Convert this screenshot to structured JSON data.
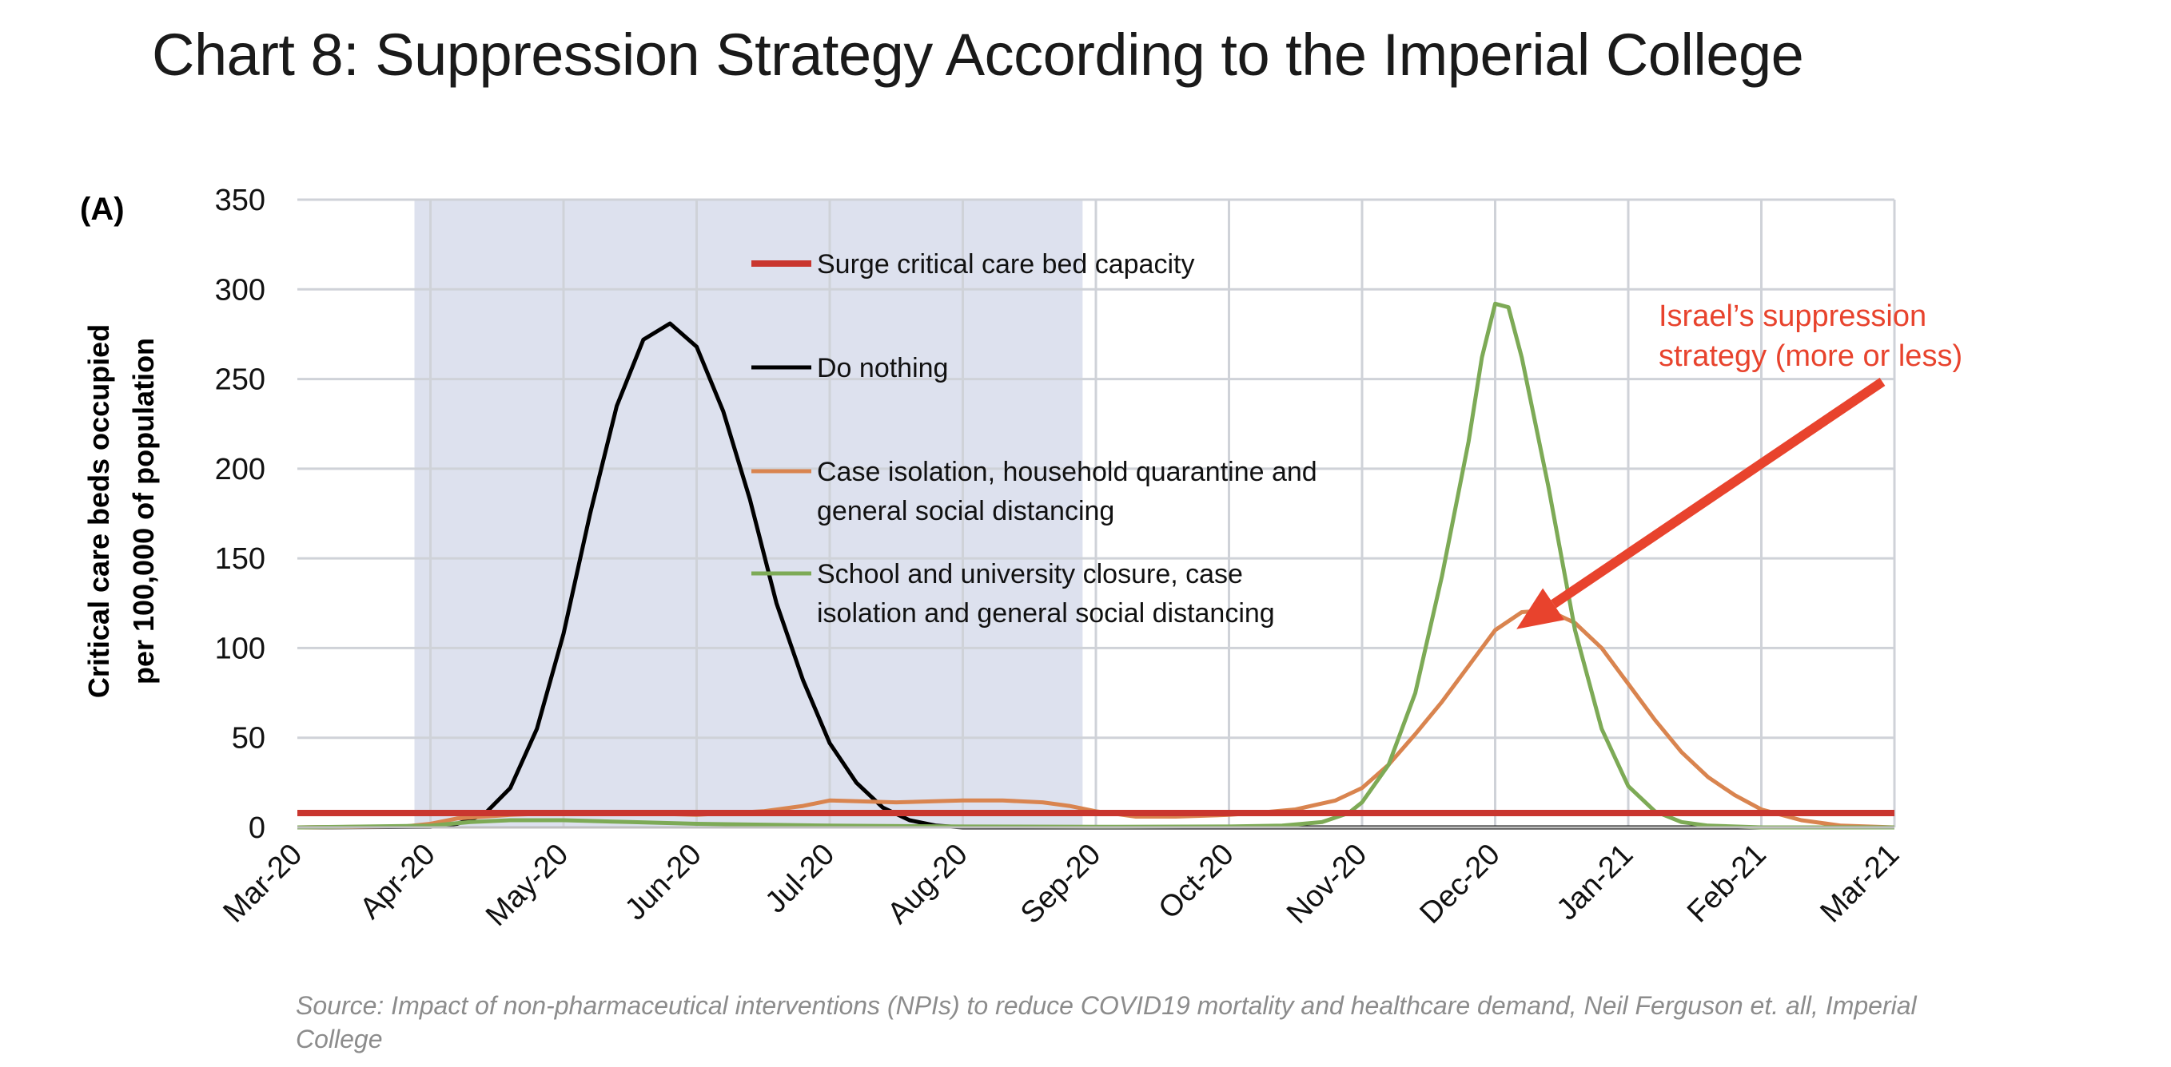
{
  "page": {
    "title": "Chart 8: Suppression Strategy According to the Imperial College",
    "source": "Source: Impact of non-pharmaceutical interventions (NPIs) to reduce COVID19 mortality and healthcare demand, Neil Ferguson et. all, Imperial College"
  },
  "chart_data": {
    "type": "line",
    "panel_label": "(A)",
    "title": "",
    "xlabel": "",
    "ylabel": [
      "Critical care beds occupied",
      "per 100,000 of population"
    ],
    "x_categories": [
      "Mar-20",
      "Apr-20",
      "May-20",
      "Jun-20",
      "Jul-20",
      "Aug-20",
      "Sep-20",
      "Oct-20",
      "Nov-20",
      "Dec-20",
      "Jan-21",
      "Feb-21",
      "Mar-21"
    ],
    "x_range": [
      0,
      12
    ],
    "y_ticks": [
      0,
      50,
      100,
      150,
      200,
      250,
      300,
      350
    ],
    "ylim": [
      0,
      350
    ],
    "grid": true,
    "shaded_period": {
      "x_start": 0.88,
      "x_end": 5.9,
      "color": "#dde1ee"
    },
    "legend_placement": "inside, center-top",
    "series": [
      {
        "name": "Surge critical care bed capacity",
        "color": "#c9362f",
        "x": [
          0,
          12
        ],
        "y": [
          8,
          8
        ]
      },
      {
        "name": "Do nothing",
        "color": "#000000",
        "x": [
          0,
          1,
          1.2,
          1.4,
          1.6,
          1.8,
          2,
          2.2,
          2.4,
          2.6,
          2.8,
          3,
          3.2,
          3.4,
          3.6,
          3.8,
          4,
          4.2,
          4.4,
          4.6,
          4.8,
          5,
          5.2,
          12
        ],
        "y": [
          0,
          0.3,
          2,
          7,
          22,
          55,
          108,
          175,
          235,
          272,
          281,
          268,
          232,
          183,
          125,
          82,
          47,
          25,
          11,
          4,
          1,
          0,
          0,
          0
        ]
      },
      {
        "name": "Case isolation, household quarantine and general social distancing",
        "color": "#d9844f",
        "x": [
          0,
          0.8,
          1,
          1.2,
          1.6,
          2,
          2.5,
          3,
          3.5,
          3.8,
          4,
          4.5,
          5,
          5.3,
          5.6,
          5.8,
          6,
          6.3,
          6.6,
          7,
          7.2,
          7.5,
          7.8,
          8,
          8.2,
          8.4,
          8.6,
          8.8,
          9,
          9.2,
          9.4,
          9.6,
          9.8,
          10,
          10.2,
          10.4,
          10.6,
          10.8,
          11,
          11.3,
          11.6,
          12
        ],
        "y": [
          0,
          0.5,
          2,
          5,
          7,
          8,
          8,
          7,
          9,
          12,
          15,
          14,
          15,
          15,
          14,
          12,
          9,
          6,
          6,
          7,
          8,
          10,
          15,
          22,
          35,
          52,
          70,
          90,
          110,
          120,
          121,
          114,
          100,
          80,
          60,
          42,
          28,
          18,
          10,
          4,
          1,
          0
        ]
      },
      {
        "name": "School and university closure, case isolation and general social distancing",
        "color": "#7daa56",
        "x": [
          0,
          1,
          1.3,
          1.6,
          2,
          2.5,
          3,
          3.5,
          4,
          5,
          6,
          7,
          7.4,
          7.7,
          7.9,
          8,
          8.2,
          8.4,
          8.6,
          8.8,
          8.9,
          9,
          9.1,
          9.2,
          9.4,
          9.6,
          9.8,
          10,
          10.2,
          10.4,
          10.6,
          11,
          12
        ],
        "y": [
          0,
          1,
          3,
          4,
          4,
          3,
          2,
          1.5,
          1,
          0.5,
          0.3,
          0.5,
          1,
          3,
          8,
          14,
          35,
          75,
          140,
          215,
          262,
          292,
          290,
          262,
          190,
          110,
          55,
          23,
          9,
          3,
          1,
          0,
          0
        ]
      }
    ],
    "annotations": [
      {
        "text": [
          "Israel’s suppression",
          "strategy (more or less)"
        ],
        "color": "#e8432d",
        "points_to_x": 9.1,
        "points_to_y": 115
      }
    ]
  }
}
